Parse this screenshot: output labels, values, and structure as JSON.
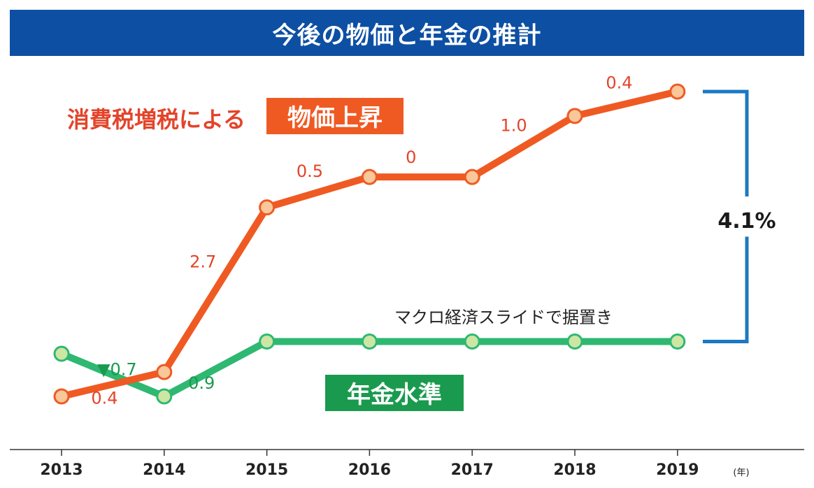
{
  "title": "今後の物価と年金の推計",
  "colors": {
    "banner": "#0d4fa3",
    "price": "#ef5a23",
    "price_marker": "#f8c79a",
    "price_label": "#e3442a",
    "pension": "#2eb872",
    "pension_marker": "#cde6a4",
    "pension_label_bg": "#1a9a4e",
    "gap_bracket": "#1b78c2",
    "axis": "#333333"
  },
  "annotations": {
    "price_caption": "消費税増税による",
    "price_badge": "物価上昇",
    "pension_badge": "年金水準",
    "macro_slide_note": "マクロ経済スライドで据置き",
    "gap": "4.1%",
    "x_unit": "(年)"
  },
  "chart_data": {
    "type": "line",
    "categories": [
      "2013",
      "2014",
      "2015",
      "2016",
      "2017",
      "2018",
      "2019"
    ],
    "ylabel": "",
    "xlabel": "",
    "grid": false,
    "series": [
      {
        "key": "price",
        "values": [
          0,
          0.4,
          3.1,
          3.6,
          3.6,
          4.6,
          5.0
        ],
        "change_labels": [
          {
            "between": [
              "2013",
              "2014"
            ],
            "text": "0.4"
          },
          {
            "between": [
              "2014",
              "2015"
            ],
            "text": "2.7"
          },
          {
            "between": [
              "2015",
              "2016"
            ],
            "text": "0.5"
          },
          {
            "between": [
              "2016",
              "2017"
            ],
            "text": "0"
          },
          {
            "between": [
              "2017",
              "2018"
            ],
            "text": "1.0"
          },
          {
            "between": [
              "2018",
              "2019"
            ],
            "text": "0.4"
          }
        ]
      },
      {
        "key": "pension",
        "values": [
          0.7,
          0,
          0.9,
          0.9,
          0.9,
          0.9,
          0.9
        ],
        "change_labels": [
          {
            "between": [
              "2013",
              "2014"
            ],
            "text": "▼0.7"
          },
          {
            "between": [
              "2014",
              "2015"
            ],
            "text": "0.9"
          }
        ]
      }
    ]
  }
}
